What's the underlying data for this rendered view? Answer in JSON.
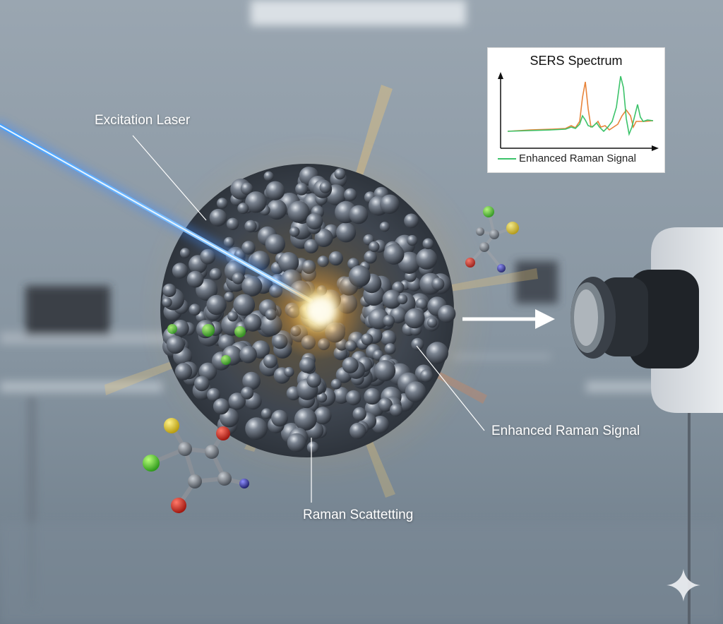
{
  "labels": {
    "laser": "Excitation Laser",
    "enhanced_signal": "Enhanced Raman Signal",
    "raman_scattering": "Raman Scattetting"
  },
  "spectrum_inset": {
    "title": "SERS Spectrum",
    "legend": "Enhanced Raman Signal"
  },
  "colors": {
    "laser": "#3f8cff",
    "nanoparticle": "#5c6470",
    "glow": "#ffd86b",
    "series_green": "#3cc36a",
    "series_orange": "#e8843a",
    "background": "#8d99a4"
  },
  "icons": [
    "sparkle-icon"
  ]
}
